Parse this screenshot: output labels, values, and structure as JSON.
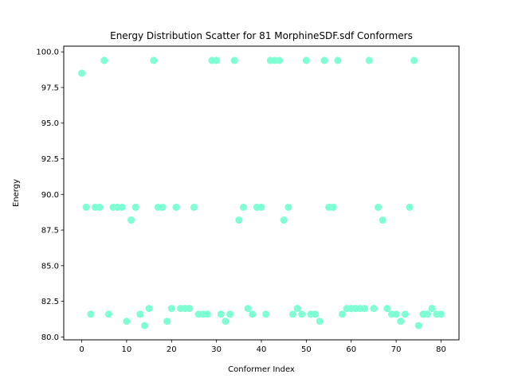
{
  "chart_data": {
    "type": "scatter",
    "title": "Energy Distribution Scatter for 81 MorphineSDF.sdf Conformers",
    "xlabel": "Conformer Index",
    "ylabel": "Energy",
    "xlim": [
      -4,
      84
    ],
    "ylim": [
      79.8,
      100.4
    ],
    "xticks": [
      0,
      10,
      20,
      30,
      40,
      50,
      60,
      70,
      80
    ],
    "yticks": [
      80.0,
      82.5,
      85.0,
      87.5,
      90.0,
      92.5,
      95.0,
      97.5,
      100.0
    ],
    "ytick_labels": [
      "80.0",
      "82.5",
      "85.0",
      "87.5",
      "90.0",
      "92.5",
      "95.0",
      "97.5",
      "100.0"
    ],
    "grid": false,
    "marker_color": "#7fffd4",
    "series": [
      {
        "x": [
          0,
          1,
          2,
          3,
          4,
          5,
          6,
          7,
          8,
          9,
          10,
          11,
          12,
          13,
          14,
          15,
          16,
          17,
          18,
          19,
          20,
          21,
          22,
          23,
          24,
          25,
          26,
          27,
          28,
          29,
          30,
          31,
          32,
          33,
          34,
          35,
          36,
          37,
          38,
          39,
          40,
          41,
          42,
          43,
          44,
          45,
          46,
          47,
          48,
          49,
          50,
          51,
          52,
          53,
          54,
          55,
          56,
          57,
          58,
          59,
          60,
          61,
          62,
          63,
          64,
          65,
          66,
          67,
          68,
          69,
          70,
          71,
          72,
          73,
          74,
          75,
          76,
          77,
          78,
          79,
          80
        ],
        "y": [
          98.5,
          89.1,
          81.6,
          89.1,
          89.1,
          99.4,
          81.6,
          89.1,
          89.1,
          89.1,
          81.1,
          88.2,
          89.1,
          81.6,
          80.8,
          82.0,
          99.4,
          89.1,
          89.1,
          81.1,
          82.0,
          89.1,
          82.0,
          82.0,
          82.0,
          89.1,
          81.6,
          81.6,
          81.6,
          99.4,
          99.4,
          81.6,
          81.1,
          81.6,
          99.4,
          88.2,
          89.1,
          82.0,
          81.6,
          89.1,
          89.1,
          81.6,
          99.4,
          99.4,
          99.4,
          88.2,
          89.1,
          81.6,
          82.0,
          81.6,
          99.4,
          81.6,
          81.6,
          81.1,
          99.4,
          89.1,
          89.1,
          99.4,
          81.6,
          82.0,
          82.0,
          82.0,
          82.0,
          82.0,
          99.4,
          82.0,
          89.1,
          88.2,
          82.0,
          81.6,
          81.6,
          81.1,
          81.6,
          89.1,
          99.4,
          80.8,
          81.6,
          81.6,
          82.0,
          81.6,
          81.6
        ]
      }
    ]
  }
}
